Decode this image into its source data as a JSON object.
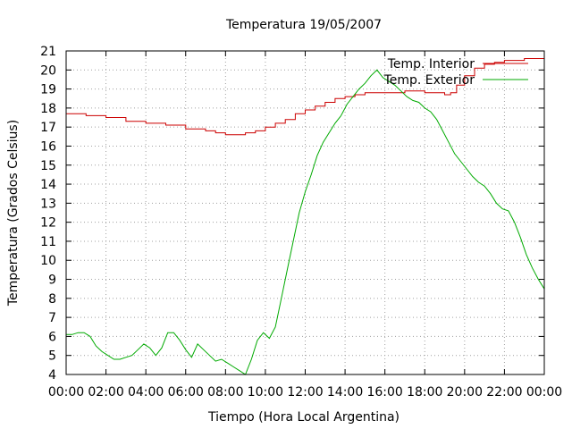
{
  "chart_data": {
    "type": "line",
    "title": "Temperatura 19/05/2007",
    "xlabel": "Tiempo (Hora Local Argentina)",
    "ylabel": "Temperatura (Grados Celsius)",
    "xlim": [
      0,
      24
    ],
    "ylim": [
      4,
      21
    ],
    "x_ticks": [
      "00:00",
      "02:00",
      "04:00",
      "06:00",
      "08:00",
      "10:00",
      "12:00",
      "14:00",
      "16:00",
      "18:00",
      "20:00",
      "22:00",
      "00:00"
    ],
    "y_ticks": [
      "4",
      "5",
      "6",
      "7",
      "8",
      "9",
      "10",
      "11",
      "12",
      "13",
      "14",
      "15",
      "16",
      "17",
      "18",
      "19",
      "20",
      "21"
    ],
    "grid": true,
    "legend_position": "top-right",
    "series": [
      {
        "name": "Temp. Interior",
        "color": "#cc0000",
        "x": [
          0,
          1,
          2,
          3,
          4,
          5,
          6,
          7,
          7.5,
          8,
          8.5,
          9,
          9.5,
          10,
          10.5,
          11,
          11.5,
          12,
          12.5,
          13,
          13.5,
          14,
          14.5,
          15,
          16,
          17,
          18,
          19,
          19.3,
          19.6,
          20,
          20.5,
          21,
          21.5,
          22,
          23,
          24
        ],
        "y": [
          17.7,
          17.6,
          17.5,
          17.3,
          17.2,
          17.1,
          16.9,
          16.8,
          16.7,
          16.6,
          16.6,
          16.7,
          16.8,
          17.0,
          17.2,
          17.4,
          17.7,
          17.9,
          18.1,
          18.3,
          18.5,
          18.6,
          18.7,
          18.8,
          18.8,
          18.9,
          18.8,
          18.7,
          18.8,
          19.2,
          19.7,
          20.1,
          20.3,
          20.4,
          20.5,
          20.6,
          20.6
        ]
      },
      {
        "name": "Temp. Exterior",
        "color": "#00aa00",
        "x": [
          0,
          0.3,
          0.6,
          0.9,
          1.2,
          1.5,
          1.8,
          2.1,
          2.4,
          2.7,
          3.0,
          3.3,
          3.6,
          3.9,
          4.2,
          4.5,
          4.8,
          5.1,
          5.4,
          5.7,
          6.0,
          6.3,
          6.6,
          6.9,
          7.2,
          7.5,
          7.8,
          8.1,
          8.4,
          8.7,
          9.0,
          9.3,
          9.6,
          9.9,
          10.2,
          10.5,
          10.8,
          11.1,
          11.4,
          11.7,
          12.0,
          12.3,
          12.6,
          12.9,
          13.2,
          13.5,
          13.8,
          14.1,
          14.4,
          14.7,
          15.0,
          15.3,
          15.6,
          15.9,
          16.2,
          16.5,
          16.8,
          17.1,
          17.4,
          17.7,
          18.0,
          18.3,
          18.6,
          18.9,
          19.2,
          19.5,
          19.8,
          20.1,
          20.4,
          20.7,
          21.0,
          21.3,
          21.6,
          21.9,
          22.2,
          22.5,
          22.8,
          23.1,
          23.4,
          23.7,
          24.0
        ],
        "y": [
          6.1,
          6.1,
          6.2,
          6.2,
          6.0,
          5.5,
          5.2,
          5.0,
          4.8,
          4.8,
          4.9,
          5.0,
          5.3,
          5.6,
          5.4,
          5.0,
          5.4,
          6.2,
          6.2,
          5.8,
          5.3,
          4.9,
          5.6,
          5.3,
          5.0,
          4.7,
          4.8,
          4.6,
          4.4,
          4.2,
          4.0,
          4.8,
          5.8,
          6.2,
          5.9,
          6.5,
          8.0,
          9.5,
          11.0,
          12.5,
          13.6,
          14.5,
          15.5,
          16.2,
          16.7,
          17.2,
          17.6,
          18.2,
          18.6,
          19.0,
          19.3,
          19.7,
          20.0,
          19.6,
          19.4,
          19.2,
          18.9,
          18.6,
          18.4,
          18.3,
          18.0,
          17.8,
          17.4,
          16.8,
          16.2,
          15.6,
          15.2,
          14.8,
          14.4,
          14.1,
          13.9,
          13.5,
          13.0,
          12.7,
          12.6,
          12.0,
          11.2,
          10.3,
          9.6,
          9.0,
          8.5
        ]
      }
    ]
  }
}
